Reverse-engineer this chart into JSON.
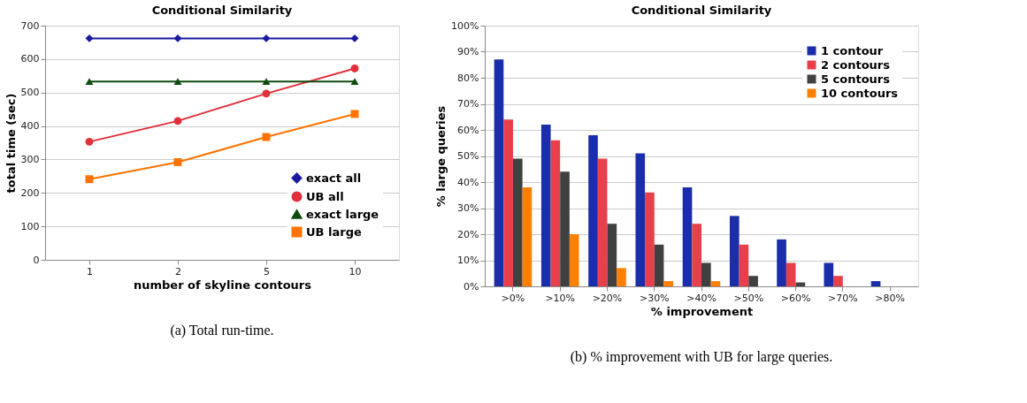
{
  "chart_data": [
    {
      "type": "line",
      "title": "Conditional Similarity",
      "xlabel": "number of skyline contours",
      "ylabel": "total time (sec)",
      "categories": [
        "1",
        "2",
        "5",
        "10"
      ],
      "ylim": [
        0,
        700
      ],
      "yticks": [
        0,
        100,
        200,
        300,
        400,
        500,
        600,
        700
      ],
      "grid": "y",
      "legend": "bottom right",
      "series": [
        {
          "name": "exact all",
          "color": "#1a1aa0",
          "marker": "diamond",
          "values": [
            662,
            662,
            662,
            662
          ]
        },
        {
          "name": "UB all",
          "color": "#e0303c",
          "marker": "circle",
          "values": [
            353,
            415,
            497,
            572
          ]
        },
        {
          "name": "exact large",
          "color": "#0f4a0f",
          "marker": "triangle",
          "values": [
            533,
            533,
            533,
            533
          ]
        },
        {
          "name": "UB large",
          "color": "#ff7300",
          "marker": "square",
          "values": [
            241,
            292,
            367,
            436
          ]
        }
      ],
      "annotations": [
        "(a) Total run-time."
      ]
    },
    {
      "type": "bar",
      "title": "Conditional Similarity",
      "xlabel": "% improvement",
      "ylabel": "% large queries",
      "categories": [
        ">0%",
        ">10%",
        ">20%",
        ">30%",
        ">40%",
        ">50%",
        ">60%",
        ">70%",
        ">80%"
      ],
      "ylim": [
        0,
        100
      ],
      "yticks": [
        {
          "value": 0,
          "label": "0%"
        },
        {
          "value": 10,
          "label": "10%"
        },
        {
          "value": 20,
          "label": "20%"
        },
        {
          "value": 30,
          "label": "30%"
        },
        {
          "value": 40,
          "label": "40%"
        },
        {
          "value": 50,
          "label": "50%"
        },
        {
          "value": 60,
          "label": "60%"
        },
        {
          "value": 70,
          "label": "70%"
        },
        {
          "value": 80,
          "label": "80%"
        },
        {
          "value": 90,
          "label": "90%"
        },
        {
          "value": 100,
          "label": "100%"
        }
      ],
      "grid": "y",
      "legend": "top right",
      "series": [
        {
          "name": "1 contour",
          "color": "#1a2daa",
          "values": [
            87,
            62,
            58,
            51,
            38,
            27,
            18,
            9,
            2
          ]
        },
        {
          "name": "2 contours",
          "color": "#e8404a",
          "values": [
            64,
            56,
            49,
            36,
            24,
            16,
            9,
            4,
            0
          ]
        },
        {
          "name": "5 contours",
          "color": "#404040",
          "values": [
            49,
            44,
            24,
            16,
            9,
            4,
            1.5,
            0,
            0
          ]
        },
        {
          "name": "10 contours",
          "color": "#ff8000",
          "values": [
            38,
            20,
            7,
            2,
            2,
            0,
            0,
            0,
            0
          ]
        }
      ],
      "annotations": [
        "(b) % improvement with UB for large queries."
      ]
    }
  ]
}
